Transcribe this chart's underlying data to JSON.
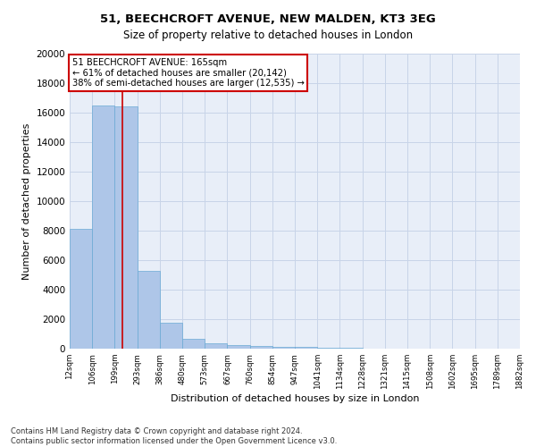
{
  "title_line1": "51, BEECHCROFT AVENUE, NEW MALDEN, KT3 3EG",
  "title_line2": "Size of property relative to detached houses in London",
  "xlabel": "Distribution of detached houses by size in London",
  "ylabel": "Number of detached properties",
  "bar_values": [
    8100,
    16500,
    16400,
    5300,
    1750,
    650,
    350,
    270,
    200,
    150,
    100,
    70,
    50,
    30,
    20,
    15,
    10,
    8,
    5,
    3
  ],
  "bar_labels": [
    "12sqm",
    "106sqm",
    "199sqm",
    "293sqm",
    "386sqm",
    "480sqm",
    "573sqm",
    "667sqm",
    "760sqm",
    "854sqm",
    "947sqm",
    "1041sqm",
    "1134sqm",
    "1228sqm",
    "1321sqm",
    "1415sqm",
    "1508sqm",
    "1602sqm",
    "1695sqm",
    "1789sqm",
    "1882sqm"
  ],
  "bar_color": "#aec6e8",
  "bar_edge_color": "#6aaad4",
  "annotation_title": "51 BEECHCROFT AVENUE: 165sqm",
  "annotation_line1": "← 61% of detached houses are smaller (20,142)",
  "annotation_line2": "38% of semi-detached houses are larger (12,535) →",
  "vline_x": 1.85,
  "annotation_box_color": "#ffffff",
  "annotation_box_edge_color": "#cc0000",
  "vline_color": "#cc0000",
  "ylim": [
    0,
    20000
  ],
  "yticks": [
    0,
    2000,
    4000,
    6000,
    8000,
    10000,
    12000,
    14000,
    16000,
    18000,
    20000
  ],
  "grid_color": "#c8d4e8",
  "background_color": "#e8eef8",
  "footer_line1": "Contains HM Land Registry data © Crown copyright and database right 2024.",
  "footer_line2": "Contains public sector information licensed under the Open Government Licence v3.0."
}
